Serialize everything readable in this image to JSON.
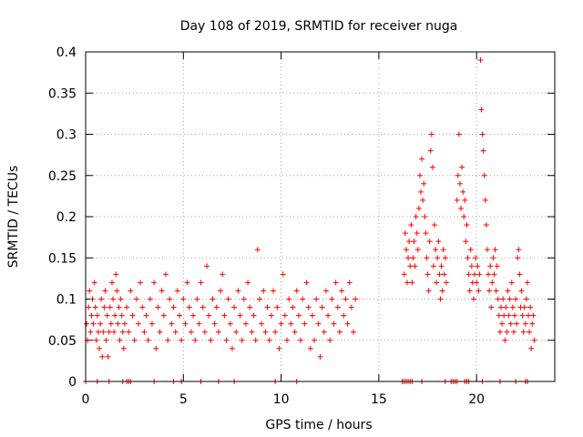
{
  "chart_data": {
    "type": "scatter",
    "title": "Day 108 of 2019, SRMTID for receiver nuga",
    "xlabel": "GPS time / hours",
    "ylabel": "SRMTID / TECUs",
    "xlim": [
      0,
      24
    ],
    "ylim": [
      0,
      0.4
    ],
    "xticks": [
      0,
      5,
      10,
      15,
      20
    ],
    "xtick_labels": [
      "0",
      "5",
      "10",
      "15",
      "20"
    ],
    "yticks": [
      0,
      0.05,
      0.1,
      0.15,
      0.2,
      0.25,
      0.3,
      0.35,
      0.4
    ],
    "ytick_labels": [
      "0",
      "0.05",
      "0.1",
      "0.15",
      "0.2",
      "0.25",
      "0.3",
      "0.35",
      "0.4"
    ],
    "grid": true,
    "marker": "plus",
    "color": "#ff0000",
    "series": [
      {
        "name": "SRMTID",
        "points": [
          [
            0.05,
            0.07
          ],
          [
            0.1,
            0.05
          ],
          [
            0.15,
            0.09
          ],
          [
            0.2,
            0.11
          ],
          [
            0.25,
            0.06
          ],
          [
            0.3,
            0.08
          ],
          [
            0.35,
            0.1
          ],
          [
            0.4,
            0.07
          ],
          [
            0.45,
            0.12
          ],
          [
            0.5,
            0.09
          ],
          [
            0.55,
            0.05
          ],
          [
            0.6,
            0.08
          ],
          [
            0.65,
            0.06
          ],
          [
            0.7,
            0.04
          ],
          [
            0.75,
            0.07
          ],
          [
            0.8,
            0.1
          ],
          [
            0.85,
            0.03
          ],
          [
            0.9,
            0.06
          ],
          [
            0.95,
            0.09
          ],
          [
            1.0,
            0.11
          ],
          [
            1.05,
            0.05
          ],
          [
            1.1,
            0.08
          ],
          [
            1.15,
            0.03
          ],
          [
            1.2,
            0.06
          ],
          [
            1.25,
            0.09
          ],
          [
            1.3,
            0.07
          ],
          [
            1.35,
            0.12
          ],
          [
            1.4,
            0.1
          ],
          [
            1.45,
            0.06
          ],
          [
            1.5,
            0.08
          ],
          [
            1.55,
            0.13
          ],
          [
            1.6,
            0.11
          ],
          [
            1.65,
            0.07
          ],
          [
            1.7,
            0.09
          ],
          [
            1.75,
            0.05
          ],
          [
            1.8,
            0.1
          ],
          [
            1.85,
            0.08
          ],
          [
            1.9,
            0.06
          ],
          [
            1.95,
            0.04
          ],
          [
            2.0,
            0.07
          ],
          [
            2.1,
            0.09
          ],
          [
            2.2,
            0.06
          ],
          [
            2.3,
            0.11
          ],
          [
            2.4,
            0.08
          ],
          [
            2.5,
            0.05
          ],
          [
            2.6,
            0.1
          ],
          [
            2.7,
            0.07
          ],
          [
            2.8,
            0.12
          ],
          [
            2.9,
            0.09
          ],
          [
            3.0,
            0.06
          ],
          [
            3.1,
            0.08
          ],
          [
            3.2,
            0.05
          ],
          [
            3.3,
            0.1
          ],
          [
            3.4,
            0.07
          ],
          [
            3.5,
            0.12
          ],
          [
            3.6,
            0.04
          ],
          [
            3.7,
            0.09
          ],
          [
            3.8,
            0.06
          ],
          [
            3.9,
            0.11
          ],
          [
            4.0,
            0.08
          ],
          [
            4.1,
            0.13
          ],
          [
            4.2,
            0.05
          ],
          [
            4.3,
            0.1
          ],
          [
            4.4,
            0.07
          ],
          [
            4.5,
            0.09
          ],
          [
            4.6,
            0.06
          ],
          [
            4.7,
            0.11
          ],
          [
            4.8,
            0.08
          ],
          [
            4.9,
            0.05
          ],
          [
            5.0,
            0.1
          ],
          [
            5.1,
            0.07
          ],
          [
            5.2,
            0.12
          ],
          [
            5.3,
            0.09
          ],
          [
            5.4,
            0.06
          ],
          [
            5.5,
            0.08
          ],
          [
            5.6,
            0.05
          ],
          [
            5.7,
            0.1
          ],
          [
            5.8,
            0.07
          ],
          [
            5.9,
            0.12
          ],
          [
            6.0,
            0.09
          ],
          [
            6.1,
            0.06
          ],
          [
            6.2,
            0.14
          ],
          [
            6.3,
            0.08
          ],
          [
            6.4,
            0.05
          ],
          [
            6.5,
            0.1
          ],
          [
            6.6,
            0.07
          ],
          [
            6.7,
            0.09
          ],
          [
            6.8,
            0.06
          ],
          [
            6.9,
            0.11
          ],
          [
            7.0,
            0.13
          ],
          [
            7.1,
            0.08
          ],
          [
            7.2,
            0.05
          ],
          [
            7.3,
            0.1
          ],
          [
            7.4,
            0.07
          ],
          [
            7.5,
            0.04
          ],
          [
            7.6,
            0.09
          ],
          [
            7.7,
            0.06
          ],
          [
            7.8,
            0.11
          ],
          [
            7.9,
            0.08
          ],
          [
            8.0,
            0.05
          ],
          [
            8.1,
            0.1
          ],
          [
            8.2,
            0.07
          ],
          [
            8.3,
            0.12
          ],
          [
            8.4,
            0.09
          ],
          [
            8.5,
            0.06
          ],
          [
            8.6,
            0.08
          ],
          [
            8.7,
            0.05
          ],
          [
            8.8,
            0.16
          ],
          [
            8.9,
            0.1
          ],
          [
            9.0,
            0.07
          ],
          [
            9.1,
            0.11
          ],
          [
            9.2,
            0.06
          ],
          [
            9.3,
            0.09
          ],
          [
            9.4,
            0.05
          ],
          [
            9.5,
            0.08
          ],
          [
            9.6,
            0.11
          ],
          [
            9.7,
            0.06
          ],
          [
            9.8,
            0.09
          ],
          [
            9.9,
            0.04
          ],
          [
            10.0,
            0.07
          ],
          [
            10.1,
            0.13
          ],
          [
            10.2,
            0.08
          ],
          [
            10.3,
            0.05
          ],
          [
            10.4,
            0.1
          ],
          [
            10.5,
            0.07
          ],
          [
            10.6,
            0.09
          ],
          [
            10.7,
            0.06
          ],
          [
            10.8,
            0.11
          ],
          [
            10.9,
            0.08
          ],
          [
            11.0,
            0.05
          ],
          [
            11.1,
            0.1
          ],
          [
            11.2,
            0.07
          ],
          [
            11.3,
            0.12
          ],
          [
            11.4,
            0.09
          ],
          [
            11.5,
            0.04
          ],
          [
            11.6,
            0.08
          ],
          [
            11.7,
            0.05
          ],
          [
            11.8,
            0.1
          ],
          [
            11.9,
            0.07
          ],
          [
            12.0,
            0.03
          ],
          [
            12.1,
            0.09
          ],
          [
            12.2,
            0.06
          ],
          [
            12.3,
            0.11
          ],
          [
            12.4,
            0.08
          ],
          [
            12.5,
            0.05
          ],
          [
            12.6,
            0.1
          ],
          [
            12.7,
            0.07
          ],
          [
            12.8,
            0.12
          ],
          [
            12.9,
            0.09
          ],
          [
            13.0,
            0.06
          ],
          [
            13.1,
            0.11
          ],
          [
            13.2,
            0.08
          ],
          [
            13.3,
            0.1
          ],
          [
            13.4,
            0.07
          ],
          [
            13.5,
            0.12
          ],
          [
            13.6,
            0.09
          ],
          [
            13.7,
            0.06
          ],
          [
            13.8,
            0.1
          ],
          [
            16.3,
            0.13
          ],
          [
            16.35,
            0.18
          ],
          [
            16.4,
            0.16
          ],
          [
            16.45,
            0.12
          ],
          [
            16.5,
            0.15
          ],
          [
            16.55,
            0.17
          ],
          [
            16.6,
            0.14
          ],
          [
            16.65,
            0.19
          ],
          [
            16.7,
            0.12
          ],
          [
            16.75,
            0.15
          ],
          [
            16.8,
            0.17
          ],
          [
            16.85,
            0.14
          ],
          [
            16.9,
            0.2
          ],
          [
            16.95,
            0.18
          ],
          [
            17.0,
            0.16
          ],
          [
            17.05,
            0.21
          ],
          [
            17.1,
            0.25
          ],
          [
            17.15,
            0.23
          ],
          [
            17.2,
            0.27
          ],
          [
            17.25,
            0.22
          ],
          [
            17.3,
            0.24
          ],
          [
            17.35,
            0.2
          ],
          [
            17.4,
            0.18
          ],
          [
            17.45,
            0.15
          ],
          [
            17.5,
            0.13
          ],
          [
            17.55,
            0.11
          ],
          [
            17.6,
            0.17
          ],
          [
            17.65,
            0.28
          ],
          [
            17.7,
            0.3
          ],
          [
            17.75,
            0.26
          ],
          [
            17.8,
            0.14
          ],
          [
            17.85,
            0.19
          ],
          [
            17.9,
            0.16
          ],
          [
            17.95,
            0.12
          ],
          [
            18.0,
            0.15
          ],
          [
            18.05,
            0.17
          ],
          [
            18.1,
            0.13
          ],
          [
            18.15,
            0.1
          ],
          [
            18.2,
            0.14
          ],
          [
            18.25,
            0.11
          ],
          [
            18.3,
            0.16
          ],
          [
            18.35,
            0.13
          ],
          [
            18.4,
            0.15
          ],
          [
            18.45,
            0.12
          ],
          [
            19.0,
            0.22
          ],
          [
            19.05,
            0.25
          ],
          [
            19.1,
            0.3
          ],
          [
            19.15,
            0.24
          ],
          [
            19.2,
            0.21
          ],
          [
            19.25,
            0.26
          ],
          [
            19.3,
            0.23
          ],
          [
            19.35,
            0.2
          ],
          [
            19.4,
            0.22
          ],
          [
            19.45,
            0.17
          ],
          [
            19.5,
            0.19
          ],
          [
            19.55,
            0.15
          ],
          [
            19.6,
            0.13
          ],
          [
            19.65,
            0.11
          ],
          [
            19.7,
            0.16
          ],
          [
            19.75,
            0.14
          ],
          [
            19.8,
            0.12
          ],
          [
            19.85,
            0.1
          ],
          [
            19.9,
            0.13
          ],
          [
            19.95,
            0.15
          ],
          [
            20.0,
            0.12
          ],
          [
            20.05,
            0.14
          ],
          [
            20.1,
            0.11
          ],
          [
            20.15,
            0.13
          ],
          [
            20.2,
            0.39
          ],
          [
            20.25,
            0.33
          ],
          [
            20.3,
            0.3
          ],
          [
            20.35,
            0.28
          ],
          [
            20.4,
            0.25
          ],
          [
            20.45,
            0.22
          ],
          [
            20.5,
            0.19
          ],
          [
            20.55,
            0.16
          ],
          [
            20.6,
            0.13
          ],
          [
            20.65,
            0.11
          ],
          [
            20.7,
            0.14
          ],
          [
            20.75,
            0.09
          ],
          [
            20.8,
            0.12
          ],
          [
            20.85,
            0.15
          ],
          [
            20.9,
            0.13
          ],
          [
            20.95,
            0.16
          ],
          [
            21.0,
            0.11
          ],
          [
            21.05,
            0.14
          ],
          [
            21.1,
            0.1
          ],
          [
            21.15,
            0.08
          ],
          [
            21.2,
            0.06
          ],
          [
            21.25,
            0.09
          ],
          [
            21.3,
            0.07
          ],
          [
            21.35,
            0.1
          ],
          [
            21.4,
            0.08
          ],
          [
            21.45,
            0.05
          ],
          [
            21.5,
            0.09
          ],
          [
            21.55,
            0.06
          ],
          [
            21.6,
            0.11
          ],
          [
            21.65,
            0.08
          ],
          [
            21.7,
            0.1
          ],
          [
            21.75,
            0.07
          ],
          [
            21.8,
            0.12
          ],
          [
            21.85,
            0.09
          ],
          [
            21.9,
            0.06
          ],
          [
            21.95,
            0.08
          ],
          [
            22.0,
            0.1
          ],
          [
            22.05,
            0.07
          ],
          [
            22.1,
            0.15
          ],
          [
            22.15,
            0.16
          ],
          [
            22.2,
            0.13
          ],
          [
            22.25,
            0.09
          ],
          [
            22.3,
            0.11
          ],
          [
            22.35,
            0.08
          ],
          [
            22.4,
            0.06
          ],
          [
            22.45,
            0.09
          ],
          [
            22.5,
            0.07
          ],
          [
            22.55,
            0.1
          ],
          [
            22.6,
            0.12
          ],
          [
            22.65,
            0.08
          ],
          [
            22.7,
            0.06
          ],
          [
            22.75,
            0.09
          ],
          [
            22.8,
            0.04
          ],
          [
            22.85,
            0.07
          ],
          [
            22.9,
            0.08
          ],
          [
            22.95,
            0.05
          ]
        ],
        "zero_points": [
          0.0,
          0.6,
          1.2,
          1.9,
          2.1,
          2.2,
          2.3,
          3.5,
          4.5,
          4.9,
          5.9,
          6.8,
          7.6,
          9.7,
          10.8,
          16.2,
          16.3,
          16.4,
          16.5,
          16.6,
          16.7,
          17.2,
          18.4,
          18.7,
          18.8,
          18.9,
          19.0,
          19.4,
          19.5,
          19.6,
          20.3,
          21.2,
          22.0,
          22.5,
          22.6
        ]
      }
    ]
  }
}
